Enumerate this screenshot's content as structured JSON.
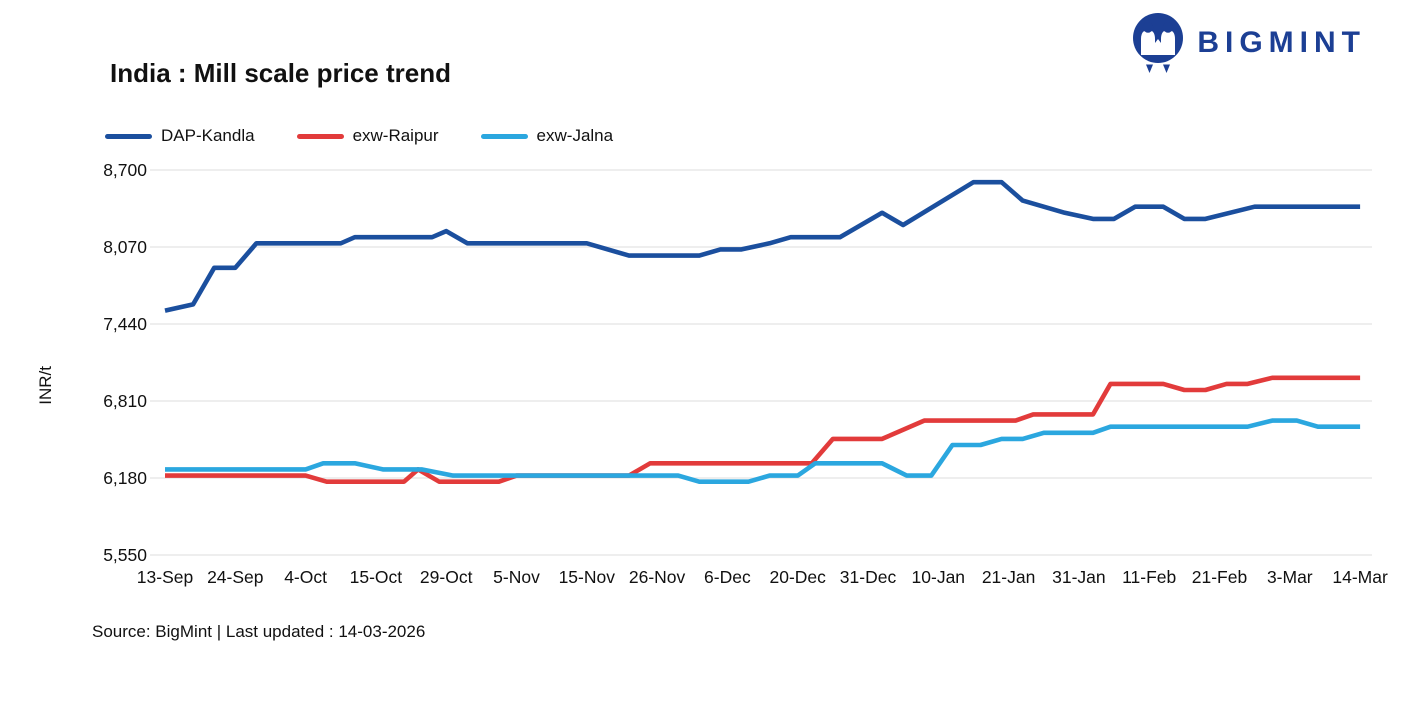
{
  "brand": {
    "name": "BIGMINT"
  },
  "footer": {
    "source": "Source: BigMint | Last updated : 14-03-2026"
  },
  "chart_data": {
    "type": "line",
    "title": "India : Mill scale price trend",
    "ylabel": "INR/t",
    "ylim": [
      5550,
      8700
    ],
    "yticks": [
      5550,
      6180,
      6810,
      7440,
      8070,
      8700
    ],
    "x_tick_labels": [
      "13-Sep",
      "24-Sep",
      "4-Oct",
      "15-Oct",
      "29-Oct",
      "5-Nov",
      "15-Nov",
      "26-Nov",
      "6-Dec",
      "20-Dec",
      "31-Dec",
      "10-Jan",
      "21-Jan",
      "31-Jan",
      "11-Feb",
      "21-Feb",
      "3-Mar",
      "14-Mar"
    ],
    "x_unit": "x values are fractional indices into x_tick_labels",
    "grid": "horizontal",
    "legend_position": "top-left",
    "gridline_color": "#e8e8e8",
    "series": [
      {
        "name": "DAP-Kandla",
        "color": "#1b4f9e",
        "points": [
          [
            0,
            7550
          ],
          [
            0.4,
            7600
          ],
          [
            0.7,
            7900
          ],
          [
            1,
            7900
          ],
          [
            1.3,
            8100
          ],
          [
            2.5,
            8100
          ],
          [
            2.7,
            8150
          ],
          [
            3.8,
            8150
          ],
          [
            4,
            8200
          ],
          [
            4.3,
            8100
          ],
          [
            6,
            8100
          ],
          [
            6.6,
            8000
          ],
          [
            7.6,
            8000
          ],
          [
            7.9,
            8050
          ],
          [
            8.2,
            8050
          ],
          [
            8.6,
            8100
          ],
          [
            8.9,
            8150
          ],
          [
            9.6,
            8150
          ],
          [
            10.2,
            8350
          ],
          [
            10.5,
            8250
          ],
          [
            11.5,
            8600
          ],
          [
            11.9,
            8600
          ],
          [
            12.2,
            8450
          ],
          [
            12.8,
            8350
          ],
          [
            13.2,
            8300
          ],
          [
            13.5,
            8300
          ],
          [
            13.8,
            8400
          ],
          [
            14.2,
            8400
          ],
          [
            14.5,
            8300
          ],
          [
            14.8,
            8300
          ],
          [
            15.5,
            8400
          ],
          [
            17,
            8400
          ]
        ]
      },
      {
        "name": "exw-Raipur",
        "color": "#e23b3b",
        "points": [
          [
            0,
            6200
          ],
          [
            2,
            6200
          ],
          [
            2.3,
            6150
          ],
          [
            3.4,
            6150
          ],
          [
            3.6,
            6250
          ],
          [
            3.9,
            6150
          ],
          [
            4.75,
            6150
          ],
          [
            5,
            6200
          ],
          [
            6.6,
            6200
          ],
          [
            6.9,
            6300
          ],
          [
            9.2,
            6300
          ],
          [
            9.5,
            6500
          ],
          [
            10.2,
            6500
          ],
          [
            10.8,
            6650
          ],
          [
            12.1,
            6650
          ],
          [
            12.35,
            6700
          ],
          [
            13.2,
            6700
          ],
          [
            13.45,
            6950
          ],
          [
            14.2,
            6950
          ],
          [
            14.5,
            6900
          ],
          [
            14.8,
            6900
          ],
          [
            15.1,
            6950
          ],
          [
            15.4,
            6950
          ],
          [
            15.75,
            7000
          ],
          [
            17,
            7000
          ]
        ]
      },
      {
        "name": "exw-Jalna",
        "color": "#2ba7df",
        "points": [
          [
            0,
            6250
          ],
          [
            2,
            6250
          ],
          [
            2.25,
            6300
          ],
          [
            2.7,
            6300
          ],
          [
            3.1,
            6250
          ],
          [
            3.65,
            6250
          ],
          [
            4.1,
            6200
          ],
          [
            7.3,
            6200
          ],
          [
            7.6,
            6150
          ],
          [
            8.3,
            6150
          ],
          [
            8.6,
            6200
          ],
          [
            9,
            6200
          ],
          [
            9.25,
            6300
          ],
          [
            10.2,
            6300
          ],
          [
            10.55,
            6200
          ],
          [
            10.9,
            6200
          ],
          [
            11.2,
            6450
          ],
          [
            11.6,
            6450
          ],
          [
            11.9,
            6500
          ],
          [
            12.2,
            6500
          ],
          [
            12.5,
            6550
          ],
          [
            13.2,
            6550
          ],
          [
            13.45,
            6600
          ],
          [
            15.4,
            6600
          ],
          [
            15.75,
            6650
          ],
          [
            16.1,
            6650
          ],
          [
            16.4,
            6600
          ],
          [
            17,
            6600
          ]
        ]
      }
    ]
  }
}
